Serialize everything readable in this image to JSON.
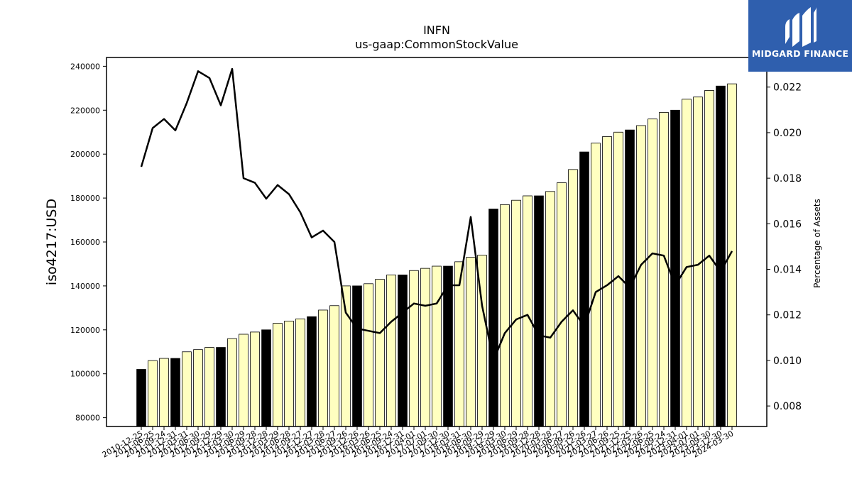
{
  "chart_data": {
    "type": "bar",
    "title": "INFN",
    "subtitle": "us-gaap:CommonStockValue",
    "ylabel": "iso4217:USD",
    "y2label": "Percentage of Assets",
    "ylim": [
      76000,
      244000
    ],
    "y2lim": [
      0.0071,
      0.0233
    ],
    "yticks": [
      80000,
      100000,
      120000,
      140000,
      160000,
      180000,
      200000,
      220000,
      240000
    ],
    "y2ticks": [
      0.008,
      0.01,
      0.012,
      0.014,
      0.016,
      0.018,
      0.02,
      0.022
    ],
    "categories": [
      "2010-12-25",
      "2011-06-25",
      "2011-09-24",
      "2011-12-31",
      "2012-03-31",
      "2012-06-30",
      "2012-09-29",
      "2012-12-29",
      "2013-03-30",
      "2013-06-29",
      "2013-09-28",
      "2013-12-28",
      "2014-03-29",
      "2014-06-28",
      "2014-09-27",
      "2014-12-27",
      "2015-03-28",
      "2015-06-27",
      "2015-09-26",
      "2015-12-26",
      "2016-03-26",
      "2016-06-25",
      "2016-09-24",
      "2016-12-31",
      "2017-04-01",
      "2017-07-01",
      "2017-09-30",
      "2017-12-30",
      "2018-03-31",
      "2018-06-30",
      "2018-09-29",
      "2018-12-29",
      "2019-03-30",
      "2019-06-29",
      "2019-09-28",
      "2019-12-28",
      "2020-03-28",
      "2020-06-27",
      "2020-09-26",
      "2020-12-26",
      "2021-03-27",
      "2021-06-26",
      "2021-09-25",
      "2021-12-25",
      "2022-03-26",
      "2022-06-25",
      "2022-09-24",
      "2022-12-31",
      "2023-04-01",
      "2023-07-01",
      "2023-09-30",
      "2023-12-30",
      "2024-03-30"
    ],
    "series": [
      {
        "type": "bar",
        "values": [
          102000,
          106000,
          107000,
          107000,
          110000,
          111000,
          112000,
          112000,
          116000,
          118000,
          119000,
          120000,
          123000,
          124000,
          125000,
          126000,
          129000,
          131000,
          140000,
          140000,
          141000,
          143000,
          145000,
          145000,
          147000,
          148000,
          149000,
          149000,
          151000,
          153000,
          154000,
          175000,
          177000,
          179000,
          181000,
          181000,
          183000,
          187000,
          193000,
          201000,
          205000,
          208000,
          210000,
          211000,
          213000,
          216000,
          219000,
          220000,
          225000,
          226000,
          229000,
          231000,
          232000
        ],
        "highlight": [
          0,
          3,
          7,
          11,
          15,
          19,
          23,
          27,
          31,
          35,
          39,
          43,
          47,
          51
        ],
        "colors": {
          "normal": "#ffffc0",
          "highlight": "#000000"
        }
      },
      {
        "type": "line",
        "axis": "right",
        "color": "#000000",
        "values": [
          0.0185,
          0.0202,
          0.0206,
          0.0201,
          0.0213,
          0.0227,
          0.0224,
          0.0212,
          0.0228,
          0.018,
          0.0178,
          0.0171,
          0.0177,
          0.0173,
          0.0165,
          0.0154,
          0.0157,
          0.0152,
          0.0121,
          0.0114,
          0.0113,
          0.0112,
          0.0117,
          0.0121,
          0.0125,
          0.0124,
          0.0125,
          0.0133,
          0.0133,
          0.0163,
          0.0124,
          0.01,
          0.0112,
          0.0118,
          0.012,
          0.0111,
          0.011,
          0.0117,
          0.0122,
          0.0115,
          0.013,
          0.0133,
          0.0137,
          0.0132,
          0.0142,
          0.0147,
          0.0146,
          0.0133,
          0.0141,
          0.0142,
          0.0146,
          0.0139,
          0.0148
        ]
      }
    ],
    "grid": false
  },
  "logo": {
    "text": "MIDGARD FINANCE",
    "icon": "midgard-logo-icon",
    "color": "#2f5fae"
  }
}
